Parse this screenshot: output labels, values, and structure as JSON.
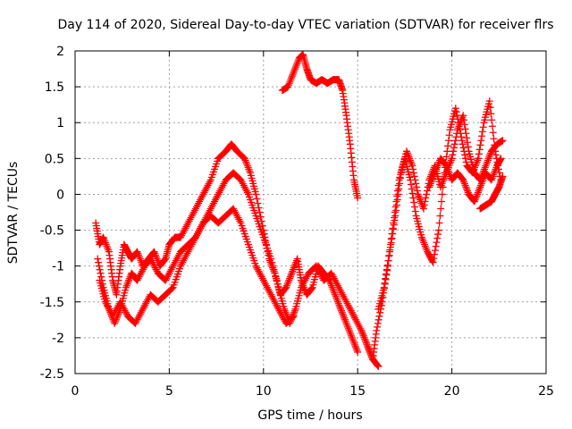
{
  "chart_data": {
    "type": "scatter",
    "title": "Day 114 of 2020, Sidereal Day-to-day VTEC variation (SDTVAR) for receiver flrs",
    "xlabel": "GPS time / hours",
    "ylabel": "SDTVAR / TECUs",
    "xlim": [
      0,
      25
    ],
    "ylim": [
      -2.5,
      2
    ],
    "xticks": [
      0,
      5,
      10,
      15,
      20,
      25
    ],
    "xtick_labels": [
      "0",
      "5",
      "10",
      "15",
      "20",
      "25"
    ],
    "yticks": [
      -2.5,
      -2,
      -1.5,
      -1,
      -0.5,
      0,
      0.5,
      1,
      1.5,
      2
    ],
    "ytick_labels": [
      "-2.5",
      "-2",
      "-1.5",
      "-1",
      "-0.5",
      "0",
      "0.5",
      "1",
      "1.5",
      "2"
    ],
    "grid": true,
    "marker": "+",
    "color": "#ff0000",
    "series": [
      {
        "x": [
          1.1,
          1.3,
          1.5,
          1.8,
          2.0,
          2.2,
          2.4,
          2.6,
          2.8,
          3.0,
          3.3,
          3.6,
          3.9,
          4.2,
          4.5,
          4.8,
          5.0,
          5.3,
          5.6,
          6.0,
          6.4,
          6.8,
          7.2,
          7.6,
          8.0,
          8.3,
          8.6,
          9.0,
          9.3,
          9.6,
          10.0,
          10.3,
          10.6,
          10.9,
          11.2,
          11.5,
          11.8,
          12.0,
          12.3,
          12.6,
          12.9,
          13.2,
          13.5,
          13.8,
          14.1,
          14.4,
          14.7,
          15.0
        ],
        "y": [
          -0.4,
          -0.7,
          -0.6,
          -0.8,
          -1.2,
          -1.4,
          -1.0,
          -0.7,
          -0.8,
          -0.9,
          -0.8,
          -1.0,
          -0.9,
          -0.8,
          -1.0,
          -0.9,
          -0.7,
          -0.6,
          -0.6,
          -0.4,
          -0.2,
          0.0,
          0.2,
          0.5,
          0.6,
          0.7,
          0.6,
          0.5,
          0.3,
          0.0,
          -0.5,
          -0.9,
          -1.1,
          -1.4,
          -1.3,
          -1.1,
          -0.9,
          -1.2,
          -1.4,
          -1.3,
          -1.0,
          -1.1,
          -1.2,
          -1.4,
          -1.6,
          -1.8,
          -2.0,
          -2.2
        ]
      },
      {
        "x": [
          1.2,
          1.5,
          1.8,
          2.1,
          2.4,
          2.7,
          3.0,
          3.3,
          3.7,
          4.0,
          4.4,
          4.8,
          5.2,
          5.6,
          6.0,
          6.4,
          6.8,
          7.2,
          7.6,
          8.0,
          8.4,
          8.8,
          9.2,
          9.6,
          10.0,
          10.4,
          10.8,
          11.1,
          11.4,
          11.7,
          12.0,
          12.4,
          12.8,
          13.2,
          13.6,
          14.0,
          14.4,
          14.8,
          15.2,
          15.5,
          15.8,
          16.1
        ],
        "y": [
          -0.9,
          -1.3,
          -1.6,
          -1.8,
          -1.6,
          -1.3,
          -1.1,
          -1.2,
          -1.0,
          -0.9,
          -1.1,
          -1.2,
          -1.0,
          -0.8,
          -0.7,
          -0.6,
          -0.4,
          -0.2,
          0.0,
          0.2,
          0.3,
          0.2,
          0.0,
          -0.3,
          -0.6,
          -0.9,
          -1.3,
          -1.6,
          -1.8,
          -1.6,
          -1.3,
          -1.1,
          -1.0,
          -1.2,
          -1.1,
          -1.3,
          -1.5,
          -1.7,
          -1.9,
          -2.1,
          -2.3,
          -2.4
        ]
      },
      {
        "x": [
          1.3,
          1.6,
          2.0,
          2.4,
          2.8,
          3.2,
          3.6,
          4.0,
          4.4,
          4.8,
          5.2,
          5.6,
          6.0,
          6.4,
          6.8,
          7.2,
          7.6,
          8.0,
          8.4,
          8.8,
          9.2,
          9.6,
          10.0,
          10.4,
          10.8,
          11.2,
          11.6
        ],
        "y": [
          -1.2,
          -1.5,
          -1.7,
          -1.5,
          -1.7,
          -1.8,
          -1.6,
          -1.4,
          -1.5,
          -1.4,
          -1.3,
          -1.0,
          -0.8,
          -0.6,
          -0.4,
          -0.3,
          -0.4,
          -0.3,
          -0.2,
          -0.4,
          -0.7,
          -1.0,
          -1.2,
          -1.4,
          -1.6,
          -1.8,
          -1.7
        ]
      },
      {
        "x": [
          11.0,
          11.3,
          11.6,
          11.9,
          12.1,
          12.3,
          12.5,
          12.8,
          13.1,
          13.4,
          13.7,
          14.0,
          14.2,
          14.4,
          14.6,
          14.8,
          15.0
        ],
        "y": [
          1.45,
          1.5,
          1.7,
          1.9,
          1.95,
          1.75,
          1.6,
          1.55,
          1.6,
          1.55,
          1.6,
          1.6,
          1.45,
          1.1,
          0.7,
          0.2,
          -0.05
        ]
      },
      {
        "x": [
          15.2,
          15.5,
          15.8,
          16.0,
          16.3,
          16.6,
          16.9,
          17.2,
          17.5,
          17.8,
          18.1,
          18.4,
          18.7,
          19.0,
          19.3,
          19.6,
          19.9,
          20.2,
          20.5,
          20.8,
          21.1,
          21.4,
          21.7,
          22.0,
          22.3,
          22.6
        ],
        "y": [
          -1.9,
          -2.1,
          -2.3,
          -1.9,
          -1.5,
          -1.0,
          -0.4,
          0.2,
          0.5,
          0.2,
          -0.3,
          -0.6,
          -0.8,
          -0.95,
          -0.5,
          0.3,
          0.9,
          1.2,
          0.8,
          0.4,
          0.3,
          0.5,
          1.0,
          1.3,
          0.6,
          0.2
        ]
      },
      {
        "x": [
          16.1,
          16.4,
          16.7,
          17.0,
          17.3,
          17.6,
          17.9,
          18.2,
          18.5,
          18.8,
          19.1,
          19.4,
          19.7,
          20.0,
          20.3,
          20.6,
          20.9,
          21.2,
          21.5,
          21.8,
          22.1,
          22.4,
          22.7
        ],
        "y": [
          -1.6,
          -1.3,
          -0.8,
          -0.3,
          0.3,
          0.6,
          0.4,
          0.0,
          -0.2,
          0.2,
          0.4,
          0.1,
          0.3,
          0.5,
          0.9,
          1.1,
          0.6,
          0.3,
          0.2,
          0.4,
          0.6,
          0.7,
          0.75
        ]
      },
      {
        "x": [
          18.8,
          19.1,
          19.4,
          19.7,
          20.0,
          20.3,
          20.6,
          20.9,
          21.2,
          21.5,
          21.8,
          22.1,
          22.4,
          22.6
        ],
        "y": [
          0.1,
          0.3,
          0.5,
          0.4,
          0.2,
          0.3,
          0.2,
          0.0,
          -0.1,
          0.1,
          0.3,
          0.2,
          0.4,
          0.5
        ]
      },
      {
        "x": [
          21.5,
          21.8,
          22.1,
          22.3,
          22.5,
          22.7
        ],
        "y": [
          -0.2,
          -0.15,
          -0.1,
          0.0,
          0.1,
          0.25
        ]
      }
    ]
  }
}
